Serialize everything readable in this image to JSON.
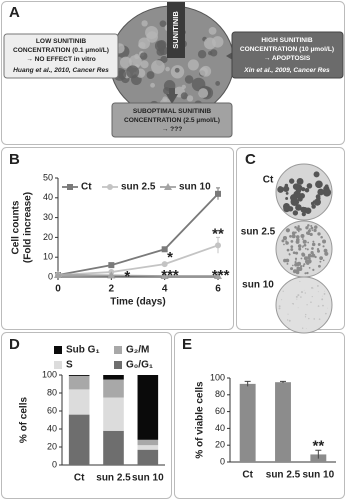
{
  "panel_labels": [
    "A",
    "B",
    "C",
    "D",
    "E"
  ],
  "diagram": {
    "drug_label": "SUNITINIB",
    "left_box": {
      "lines": [
        "LOW SUNITINIB",
        "CONCENTRATION (0.1 µmol/L)",
        "→ NO EFFECT in vitro",
        "Huang et al., 2010, Cancer Res"
      ]
    },
    "right_box": {
      "lines": [
        "HIGH SUNITINIB",
        "CONCENTRATION (10 µmol/L)",
        "→ APOPTOSIS",
        "Xin et al., 2009, Cancer Res"
      ]
    },
    "bottom_box": {
      "lines": [
        "SUBOPTIMAL SUNITINIB",
        "CONCENTRATION (2.5 µmol/L)",
        "→ ???"
      ]
    }
  },
  "colonies": {
    "labels": [
      "Ct",
      "sun 2.5",
      "sun 10"
    ]
  },
  "chart_data": [
    {
      "type": "line",
      "ylabel": [
        "Cell counts",
        "(Fold increase)"
      ],
      "xlabel": "Time (days)",
      "x": [
        0,
        2,
        4,
        6
      ],
      "xlim": [
        0,
        6
      ],
      "xticks": [
        0,
        2,
        4,
        6
      ],
      "ylim": [
        0,
        50
      ],
      "yticks": [
        0,
        10,
        20,
        30,
        40,
        50
      ],
      "series": [
        {
          "name": "Ct",
          "color": "#7a7a7a",
          "marker": "square",
          "values": [
            1,
            6,
            14,
            42
          ],
          "errors": [
            0,
            0.5,
            1,
            3
          ]
        },
        {
          "name": "sun 2.5",
          "color": "#c4c4c4",
          "marker": "circle",
          "values": [
            1,
            2.5,
            6.5,
            16
          ],
          "errors": [
            0,
            0.3,
            0.5,
            4
          ]
        },
        {
          "name": "sun 10",
          "color": "#a3a3a3",
          "marker": "triangle",
          "values": [
            1,
            0.8,
            0.5,
            0.5
          ],
          "errors": [
            0,
            0.2,
            0.2,
            0.2
          ]
        }
      ],
      "annotations": [
        {
          "text": "*",
          "x": 2.6,
          "y": 1.5
        },
        {
          "text": "*",
          "x": 4.2,
          "y": 11
        },
        {
          "text": "***",
          "x": 4.2,
          "y": 2
        },
        {
          "text": "**",
          "x": 6,
          "y": 23
        },
        {
          "text": "***",
          "x": 6.1,
          "y": 2
        }
      ]
    },
    {
      "type": "stacked_bar",
      "ylabel": [
        "% of cells"
      ],
      "categories": [
        "Ct",
        "sun 2.5",
        "sun 10"
      ],
      "ylim": [
        0,
        100
      ],
      "yticks": [
        0,
        20,
        40,
        60,
        80,
        100
      ],
      "series": [
        {
          "name": "G₀/G₁",
          "color": "#6e6e6e",
          "values": [
            56,
            38,
            17
          ]
        },
        {
          "name": "S",
          "color": "#dcdcdc",
          "values": [
            28,
            37,
            5
          ]
        },
        {
          "name": "G₂/M",
          "color": "#a8a8a8",
          "values": [
            15,
            20,
            6
          ]
        },
        {
          "name": "Sub G₁",
          "color": "#0a0a0a",
          "values": [
            1,
            5,
            72
          ]
        }
      ]
    },
    {
      "type": "bar",
      "ylabel": [
        "% of viable cells"
      ],
      "categories": [
        "Ct",
        "sun 2.5",
        "sun 10"
      ],
      "color": "#8c8c8c",
      "values": [
        93,
        95,
        9
      ],
      "errors": [
        3,
        1,
        5
      ],
      "ylim": [
        0,
        100
      ],
      "yticks": [
        0,
        20,
        40,
        60,
        80,
        100
      ],
      "annotations": [
        {
          "text": "**",
          "at": "sun 10",
          "y": 22
        }
      ]
    }
  ]
}
